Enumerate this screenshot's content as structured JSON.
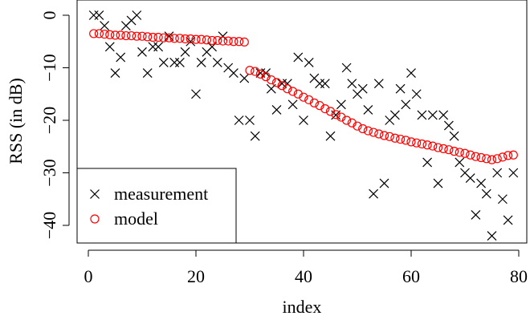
{
  "chart_data": {
    "type": "scatter",
    "xlabel": "index",
    "ylabel": "RSS (in dB)",
    "xlim": [
      -2,
      82
    ],
    "ylim": [
      -44,
      1.5
    ],
    "x_ticks": [
      0,
      20,
      40,
      60,
      80
    ],
    "x_tick_labels": [
      "0",
      "20",
      "40",
      "60",
      "80"
    ],
    "y_ticks": [
      0,
      -10,
      -20,
      -30,
      -40
    ],
    "y_tick_labels": [
      "0",
      "−10",
      "−20",
      "−30",
      "−40"
    ],
    "grid": false,
    "legend_position": "bottom-left",
    "series": [
      {
        "name": "measurement",
        "marker": "cross",
        "color": "#000000",
        "x": [
          1,
          2,
          3,
          4,
          5,
          6,
          7,
          8,
          9,
          10,
          11,
          12,
          13,
          14,
          15,
          16,
          17,
          18,
          19,
          20,
          21,
          22,
          23,
          24,
          25,
          26,
          27,
          28,
          29,
          30,
          31,
          32,
          33,
          34,
          35,
          36,
          37,
          38,
          39,
          40,
          41,
          42,
          43,
          44,
          45,
          46,
          47,
          48,
          49,
          50,
          51,
          52,
          53,
          54,
          55,
          56,
          57,
          58,
          59,
          60,
          61,
          62,
          63,
          64,
          65,
          66,
          67,
          68,
          69,
          70,
          71,
          72,
          73,
          74,
          75,
          76,
          77,
          78,
          79
        ],
        "y": [
          0,
          0,
          -2,
          -6,
          -11,
          -8,
          -2,
          -1,
          0,
          -7,
          -11,
          -6,
          -6,
          -9,
          -4,
          -9,
          -9,
          -7,
          -5,
          -15,
          -9,
          -7,
          -6,
          -9,
          -4,
          -10,
          -11,
          -20,
          -12,
          -20,
          -23,
          -11,
          -11,
          -14,
          -18,
          -13,
          -13,
          -17,
          -8,
          -20,
          -9,
          -12,
          -13,
          -13,
          -23,
          -19,
          -17,
          -10,
          -13,
          -15,
          -14,
          -18,
          -34,
          -13,
          -32,
          -20,
          -19,
          -14,
          -17,
          -11,
          -15,
          -19,
          -28,
          -19,
          -32,
          -19,
          -21,
          -23,
          -28,
          -30,
          -31,
          -38,
          -32,
          -34,
          -42,
          -30,
          -35,
          -39,
          -30
        ]
      },
      {
        "name": "model",
        "marker": "circle",
        "color": "#ff0000",
        "x": [
          1,
          2,
          3,
          4,
          5,
          6,
          7,
          8,
          9,
          10,
          11,
          12,
          13,
          14,
          15,
          16,
          17,
          18,
          19,
          20,
          21,
          22,
          23,
          24,
          25,
          26,
          27,
          28,
          29,
          30,
          31,
          32,
          33,
          34,
          35,
          36,
          37,
          38,
          39,
          40,
          41,
          42,
          43,
          44,
          45,
          46,
          47,
          48,
          49,
          50,
          51,
          52,
          53,
          54,
          55,
          56,
          57,
          58,
          59,
          60,
          61,
          62,
          63,
          64,
          65,
          66,
          67,
          68,
          69,
          70,
          71,
          72,
          73,
          74,
          75,
          76,
          77,
          78,
          79
        ],
        "y": [
          -3.5,
          -3.5,
          -3.6,
          -3.7,
          -3.8,
          -3.8,
          -3.9,
          -3.9,
          -4.0,
          -4.0,
          -4.1,
          -4.2,
          -4.2,
          -4.3,
          -4.3,
          -4.4,
          -4.4,
          -4.5,
          -4.5,
          -4.6,
          -4.6,
          -4.7,
          -4.8,
          -4.8,
          -4.9,
          -4.9,
          -5.0,
          -5.0,
          -5.1,
          -10.5,
          -10.7,
          -11.2,
          -11.7,
          -12.3,
          -12.8,
          -13.4,
          -14.0,
          -14.5,
          -15.0,
          -15.6,
          -16.1,
          -16.7,
          -17.2,
          -17.8,
          -18.3,
          -18.9,
          -19.4,
          -20.0,
          -20.5,
          -21.1,
          -21.6,
          -22.0,
          -22.3,
          -22.6,
          -22.9,
          -23.1,
          -23.4,
          -23.6,
          -23.8,
          -24.1,
          -24.3,
          -24.5,
          -24.7,
          -24.9,
          -25.2,
          -25.4,
          -25.6,
          -25.9,
          -26.1,
          -26.3,
          -26.6,
          -26.9,
          -27.1,
          -27.3,
          -27.5,
          -27.3,
          -27.0,
          -26.7,
          -26.6
        ]
      }
    ]
  }
}
